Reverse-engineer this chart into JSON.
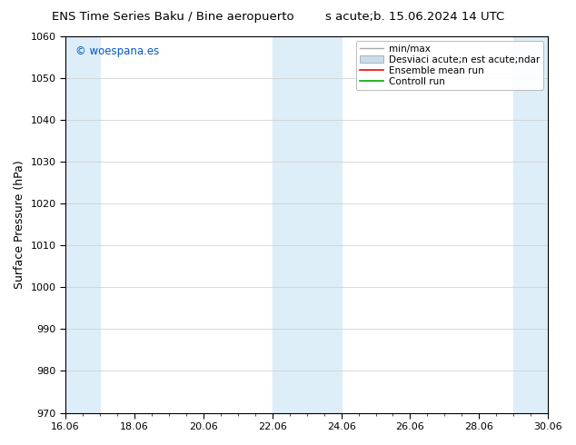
{
  "title_left": "ENS Time Series Baku / Bine aeropuerto",
  "title_right": "s acute;b. 15.06.2024 14 UTC",
  "ylabel": "Surface Pressure (hPa)",
  "ylim": [
    970,
    1060
  ],
  "yticks": [
    970,
    980,
    990,
    1000,
    1010,
    1020,
    1030,
    1040,
    1050,
    1060
  ],
  "xtick_labels": [
    "16.06",
    "18.06",
    "20.06",
    "22.06",
    "24.06",
    "26.06",
    "28.06",
    "30.06"
  ],
  "xtick_positions": [
    0,
    2,
    4,
    6,
    8,
    10,
    12,
    14
  ],
  "shaded_bands": [
    {
      "x_start": 0,
      "x_end": 1.0,
      "color": "#ddeef8",
      "alpha": 1.0
    },
    {
      "x_start": 6,
      "x_end": 8.0,
      "color": "#ddeef8",
      "alpha": 1.0
    },
    {
      "x_start": 13.0,
      "x_end": 14.0,
      "color": "#ddeef8",
      "alpha": 1.0
    }
  ],
  "watermark_text": "© woespana.es",
  "watermark_color": "#0055cc",
  "legend_label_minmax": "min/max",
  "legend_label_std": "Desviaci acute;n est acute;ndar",
  "legend_label_ens": "Ensemble mean run",
  "legend_label_ctrl": "Controll run",
  "legend_color_minmax": "#aaaaaa",
  "legend_color_std": "#c8dcea",
  "legend_color_ens": "#ff0000",
  "legend_color_ctrl": "#00aa00",
  "bg_color": "#ffffff",
  "plot_bg_color": "#ffffff",
  "title_fontsize": 9.5,
  "tick_fontsize": 8,
  "ylabel_fontsize": 9,
  "legend_fontsize": 7.5,
  "grid_color": "#cccccc",
  "axis_color": "#000000"
}
